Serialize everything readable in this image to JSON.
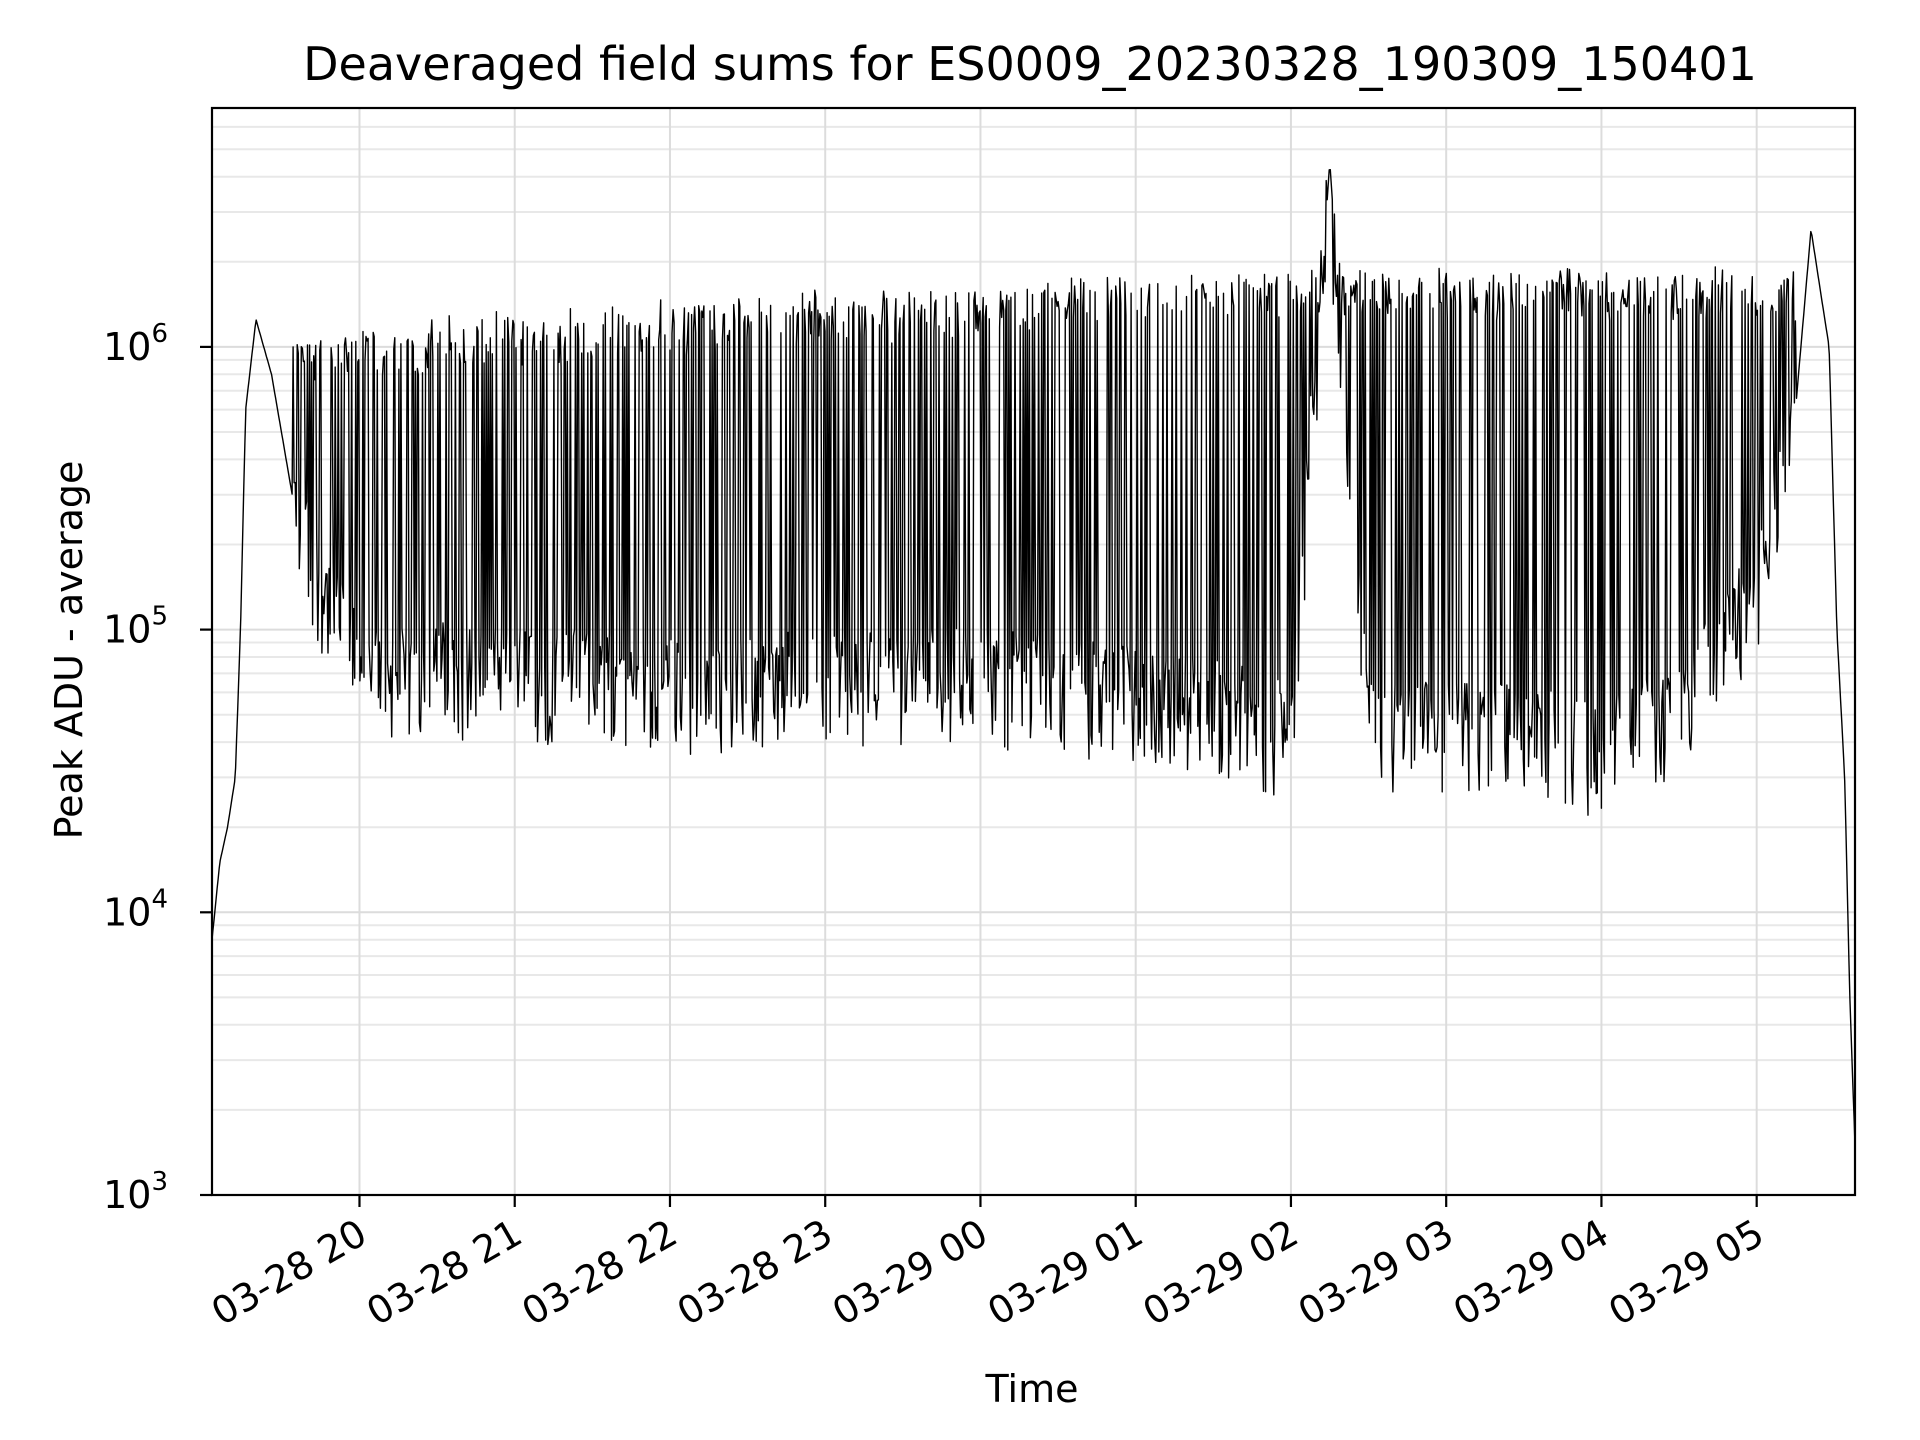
{
  "chart_data": {
    "type": "line",
    "title": "Deaveraged field sums for ES0009_20230328_190309_150401",
    "xlabel": "Time",
    "ylabel": "Peak ADU - average",
    "yscale": "log",
    "ylim": [
      1000,
      7000000
    ],
    "xlim": [
      "2023-03-28 19:03",
      "2023-03-29 05:38"
    ],
    "grid": true,
    "x_ticks": [
      "03-28 20",
      "03-28 21",
      "03-28 22",
      "03-28 23",
      "03-29 00",
      "03-29 01",
      "03-29 02",
      "03-29 03",
      "03-29 04",
      "03-29 05"
    ],
    "y_ticks": [
      {
        "base": "10",
        "exp": "3"
      },
      {
        "base": "10",
        "exp": "4"
      },
      {
        "base": "10",
        "exp": "5"
      },
      {
        "base": "10",
        "exp": "6"
      }
    ],
    "series": [
      {
        "x": [
          "2023-03-28 19:03",
          "2023-03-28 19:06",
          "2023-03-28 19:09",
          "2023-03-28 19:12",
          "2023-03-28 19:14",
          "2023-03-28 19:16",
          "2023-03-28 19:20",
          "2023-03-28 19:26",
          "2023-03-28 19:34",
          "2023-03-28 19:45",
          "2023-03-28 20:00",
          "2023-03-28 20:15",
          "2023-03-28 20:30",
          "2023-03-28 21:00",
          "2023-03-28 21:30",
          "2023-03-28 22:00",
          "2023-03-28 22:30",
          "2023-03-28 23:00",
          "2023-03-28 23:30",
          "2023-03-29 00:00",
          "2023-03-29 00:30",
          "2023-03-29 01:00",
          "2023-03-29 01:30",
          "2023-03-29 02:00",
          "2023-03-29 02:15",
          "2023-03-29 02:30",
          "2023-03-29 03:00",
          "2023-03-29 03:30",
          "2023-03-29 03:55",
          "2023-03-29 04:30",
          "2023-03-29 05:00",
          "2023-03-29 05:15",
          "2023-03-29 05:21",
          "2023-03-29 05:25",
          "2023-03-29 05:28",
          "2023-03-29 05:31",
          "2023-03-29 05:34",
          "2023-03-29 05:36",
          "2023-03-29 05:38"
        ],
        "y": [
          8000,
          15000,
          20000,
          30000,
          100000,
          600000,
          1250000,
          800000,
          300000,
          150000,
          75000,
          70000,
          75000,
          70000,
          70000,
          65000,
          65000,
          70000,
          70000,
          70000,
          65000,
          60000,
          55000,
          45000,
          4500000,
          45000,
          45000,
          45000,
          40000,
          50000,
          150000,
          600000,
          2600000,
          1500000,
          1000000,
          100000,
          30000,
          5000,
          1500
        ]
      }
    ]
  }
}
